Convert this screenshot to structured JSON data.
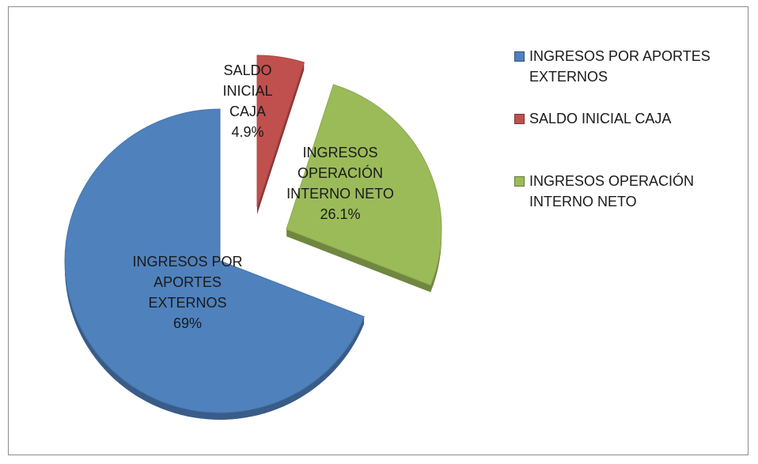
{
  "chart_data": {
    "type": "pie",
    "categories": [
      "INGRESOS POR APORTES EXTERNOS",
      "SALDO INICIAL CAJA",
      "INGRESOS OPERACIÓN INTERNO NETO"
    ],
    "values": [
      69,
      4.9,
      26.1
    ],
    "value_labels": [
      "69%",
      "4.9%",
      "26.1%"
    ],
    "colors": [
      "#4f81bd",
      "#c0504d",
      "#9bbb59"
    ]
  }
}
